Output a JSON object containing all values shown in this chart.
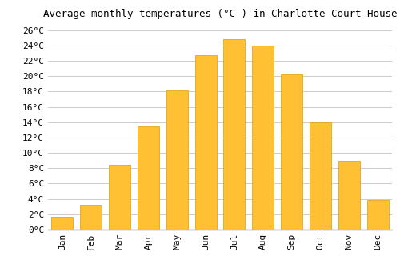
{
  "title": "Average monthly temperatures (°C ) in Charlotte Court House",
  "months": [
    "Jan",
    "Feb",
    "Mar",
    "Apr",
    "May",
    "Jun",
    "Jul",
    "Aug",
    "Sep",
    "Oct",
    "Nov",
    "Dec"
  ],
  "values": [
    1.7,
    3.2,
    8.4,
    13.4,
    18.1,
    22.7,
    24.8,
    24.0,
    20.2,
    14.0,
    9.0,
    3.9
  ],
  "bar_color": "#FFC033",
  "bar_edge_color": "#E09B00",
  "background_color": "#FFFFFF",
  "grid_color": "#CCCCCC",
  "ylim": [
    0,
    27
  ],
  "yticks": [
    0,
    2,
    4,
    6,
    8,
    10,
    12,
    14,
    16,
    18,
    20,
    22,
    24,
    26
  ],
  "title_fontsize": 9,
  "tick_fontsize": 8,
  "bar_width": 0.75
}
